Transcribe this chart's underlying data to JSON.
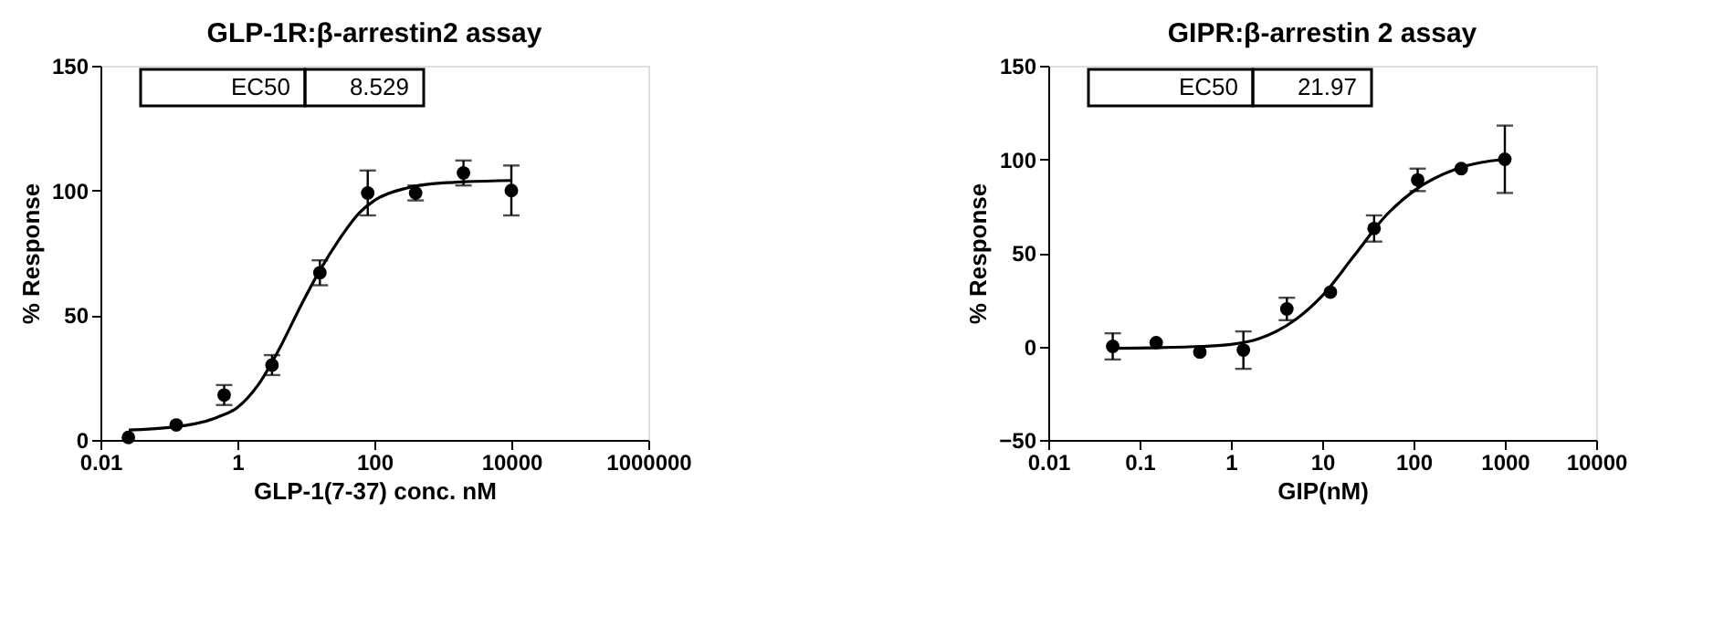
{
  "chart_data": [
    {
      "type": "scatter",
      "title": "GLP-1R:β-arrestin2 assay",
      "xlabel": "GLP-1(7-37) conc. nM",
      "ylabel": "% Response",
      "log": "x",
      "xlim": [
        0.01,
        1000000
      ],
      "xticks": [
        0.01,
        1,
        100,
        10000,
        1000000
      ],
      "ylim": [
        0,
        150
      ],
      "yticks": [
        0,
        50,
        100,
        150
      ],
      "grid": false,
      "annotations": [
        "EC50",
        "8.529"
      ],
      "series": [
        {
          "marker": "circle",
          "color": "#000000",
          "x": [
            0.0256,
            0.128,
            0.64,
            3.2,
            16,
            80,
            400,
            2000,
            10000
          ],
          "values": [
            1,
            6,
            18,
            30,
            67,
            99,
            99,
            107,
            100
          ],
          "errors": [
            null,
            null,
            4,
            4,
            5,
            9,
            3,
            5,
            10
          ]
        },
        {
          "type": "line",
          "marker": "none",
          "color": "#000000",
          "line_style": "solid",
          "x": [
            0.026,
            0.1,
            0.5,
            1,
            2,
            4,
            8.5,
            16,
            30,
            60,
            100,
            300,
            1000,
            10000
          ],
          "values": [
            4,
            5,
            9,
            13,
            22,
            36,
            54,
            68,
            80,
            91,
            96,
            101,
            103,
            104
          ]
        }
      ]
    },
    {
      "type": "scatter",
      "title": "GIPR:β-arrestin 2 assay",
      "xlabel": "GIP(nM)",
      "ylabel": "% Response",
      "log": "x",
      "xlim": [
        0.01,
        10000
      ],
      "xticks": [
        0.01,
        0.1,
        1,
        10,
        100,
        1000,
        10000
      ],
      "ylim": [
        -50,
        150
      ],
      "yticks": [
        -50,
        0,
        50,
        100,
        150
      ],
      "grid": false,
      "annotations": [
        "EC50",
        "21.97"
      ],
      "series": [
        {
          "marker": "circle",
          "color": "#000000",
          "x": [
            0.0508,
            0.152,
            0.457,
            1.37,
            4.1,
            12.3,
            37,
            111,
            333,
            1000
          ],
          "values": [
            0,
            2,
            -3,
            -2,
            20,
            29,
            63,
            89,
            95,
            100
          ],
          "errors": [
            7,
            null,
            null,
            10,
            6,
            null,
            7,
            6,
            null,
            18
          ]
        },
        {
          "type": "line",
          "marker": "none",
          "color": "#000000",
          "line_style": "solid",
          "x": [
            0.05,
            0.5,
            1,
            2,
            5,
            10,
            22,
            50,
            100,
            300,
            1000
          ],
          "values": [
            -1,
            0,
            1,
            4,
            14,
            27,
            48,
            70,
            83,
            95,
            100
          ]
        }
      ]
    }
  ]
}
